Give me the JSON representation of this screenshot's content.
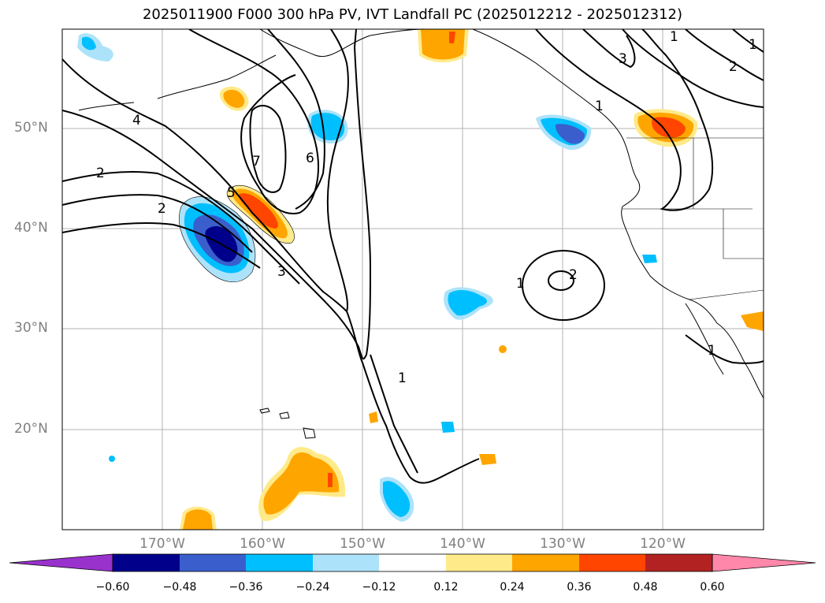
{
  "title": "2025011900 F000 300 hPa PV, IVT Landfall PC (2025012212 - 2025012312)",
  "latitude_labels": [
    "50°N",
    "40°N",
    "30°N",
    "20°N"
  ],
  "longitude_labels": [
    "170°W",
    "160°W",
    "150°W",
    "140°W",
    "130°W",
    "120°W"
  ],
  "contour_labels": [
    "1",
    "1",
    "1",
    "2",
    "2",
    "3",
    "3",
    "4",
    "5",
    "6",
    "7",
    "1",
    "2",
    "1",
    "1"
  ],
  "colorbar": {
    "ticks": [
      "−0.60",
      "−0.48",
      "−0.36",
      "−0.24",
      "−0.12",
      "0.12",
      "0.24",
      "0.36",
      "0.48",
      "0.60"
    ],
    "colors": [
      "#9932CC",
      "#00008B",
      "#3A5FCD",
      "#00BFFF",
      "#ADE3FA",
      "#FFFFFF",
      "#FFEA8A",
      "#FFA500",
      "#FF4500",
      "#B22222",
      "#FF88AA"
    ]
  },
  "colors": {
    "coastline": "#000000",
    "contour": "#000000",
    "gridline": "#b3b3b3"
  }
}
